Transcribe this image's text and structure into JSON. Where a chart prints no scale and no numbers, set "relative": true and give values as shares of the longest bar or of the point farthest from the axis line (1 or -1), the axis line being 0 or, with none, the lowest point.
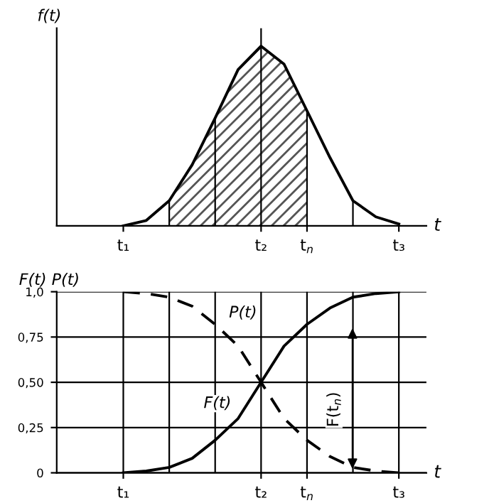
{
  "chart_data": [
    {
      "type": "line",
      "relative": true,
      "ylabel": "f(t)",
      "xlabel": "t",
      "categories": [
        "t₁",
        null,
        null,
        null,
        null,
        null,
        "t₂",
        null,
        "t$_{n}$",
        null,
        null,
        null,
        "t₃"
      ],
      "series": [
        {
          "color": "#000000",
          "values": [
            0,
            0.03,
            0.14,
            0.34,
            0.6,
            0.87,
            1,
            0.9,
            0.64,
            0.38,
            0.14,
            0.05,
            0.01
          ]
        }
      ],
      "grid": "x",
      "legend": false
    },
    {
      "type": "line",
      "ylabel": "F(t) P(t)",
      "xlabel": "t",
      "ylim": [
        0,
        1.0
      ],
      "categories": [
        "t₁",
        null,
        null,
        null,
        null,
        null,
        "t₂",
        null,
        "t$_{n}$",
        null,
        null,
        null,
        "t₃"
      ],
      "yticks": [
        0,
        {
          "value": 0.25,
          "label": "0,25"
        },
        {
          "value": 0.5,
          "label": "0,50"
        },
        {
          "value": 0.75,
          "label": "0,75"
        },
        {
          "value": 1.0,
          "label": "1,0"
        }
      ],
      "series": [
        {
          "name": "F(t)",
          "color": "#000000",
          "line_style": "solid",
          "values": [
            0,
            0.01,
            0.03,
            0.08,
            0.18,
            0.3,
            0.5,
            0.7,
            0.82,
            0.91,
            0.97,
            0.99,
            1.0
          ]
        },
        {
          "name": "P(t)",
          "color": "#000000",
          "line_style": "dashed",
          "values": [
            1.0,
            0.99,
            0.97,
            0.92,
            0.82,
            0.7,
            0.5,
            0.3,
            0.18,
            0.09,
            0.03,
            0.01,
            0.0
          ]
        }
      ],
      "annotations": [
        "F(t$_{n}$)"
      ],
      "grid": true,
      "legend": false
    }
  ]
}
